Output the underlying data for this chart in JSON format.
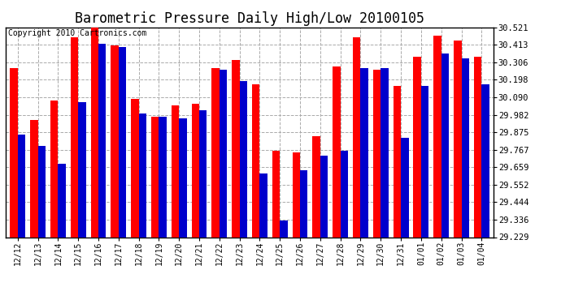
{
  "title": "Barometric Pressure Daily High/Low 20100105",
  "copyright": "Copyright 2010 Cartronics.com",
  "background_color": "#ffffff",
  "bar_width": 0.38,
  "ylim": [
    29.229,
    30.521
  ],
  "yticks": [
    29.229,
    29.336,
    29.444,
    29.552,
    29.659,
    29.767,
    29.875,
    29.982,
    30.09,
    30.198,
    30.306,
    30.413,
    30.521
  ],
  "dates": [
    "12/12",
    "12/13",
    "12/14",
    "12/15",
    "12/16",
    "12/17",
    "12/18",
    "12/19",
    "12/20",
    "12/21",
    "12/22",
    "12/23",
    "12/24",
    "12/25",
    "12/26",
    "12/27",
    "12/28",
    "12/29",
    "12/30",
    "12/31",
    "01/01",
    "01/02",
    "01/03",
    "01/04"
  ],
  "highs": [
    30.27,
    29.95,
    30.07,
    30.46,
    30.52,
    30.41,
    30.08,
    29.97,
    30.04,
    30.05,
    30.27,
    30.32,
    30.17,
    29.76,
    29.75,
    29.85,
    30.28,
    30.46,
    30.26,
    30.16,
    30.34,
    30.47,
    30.44,
    30.34
  ],
  "lows": [
    29.86,
    29.79,
    29.68,
    30.06,
    30.42,
    30.4,
    29.99,
    29.97,
    29.96,
    30.01,
    30.26,
    30.19,
    29.62,
    29.33,
    29.64,
    29.73,
    29.76,
    30.27,
    30.27,
    29.84,
    30.16,
    30.36,
    30.33,
    30.17
  ],
  "high_color": "#ff0000",
  "low_color": "#0000cc",
  "grid_color": "#aaaaaa",
  "title_fontsize": 12,
  "copyright_fontsize": 7,
  "ymin": 29.229
}
